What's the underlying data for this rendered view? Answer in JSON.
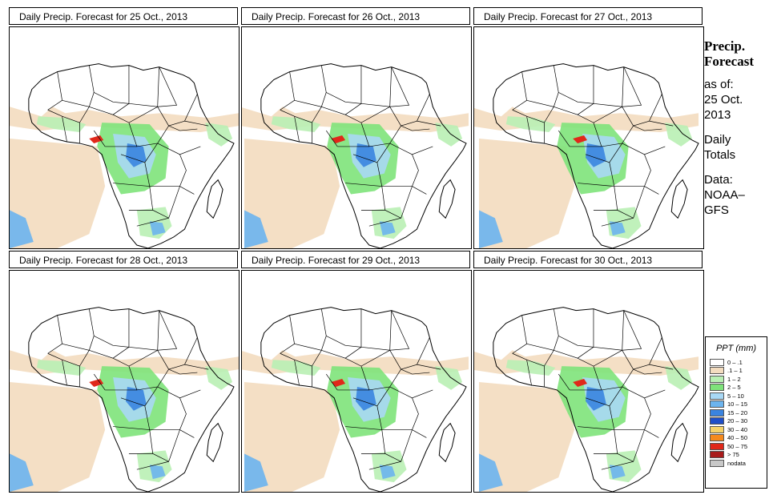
{
  "panels": [
    {
      "title": "Daily Precip. Forecast for  25 Oct., 2013"
    },
    {
      "title": "Daily Precip. Forecast for  26 Oct., 2013"
    },
    {
      "title": "Daily Precip. Forecast for  27 Oct., 2013"
    },
    {
      "title": "Daily Precip. Forecast for  28 Oct., 2013"
    },
    {
      "title": "Daily Precip. Forecast for  29 Oct., 2013"
    },
    {
      "title": "Daily Precip. Forecast for  30 Oct., 2013"
    }
  ],
  "sidebar": {
    "heading_1": "Precip.",
    "heading_2": "Forecast",
    "asof_1": "as of:",
    "asof_2": "25 Oct.",
    "asof_3": "2013",
    "totals_1": "Daily",
    "totals_2": "Totals",
    "data_1": "Data:",
    "data_2": "NOAA–",
    "data_3": "GFS"
  },
  "legend": {
    "title": "PPT (mm)",
    "items": [
      {
        "label": "0 – .1",
        "color": "#ffffff"
      },
      {
        "label": ".1 – 1",
        "color": "#f3dcbf"
      },
      {
        "label": "1 – 2",
        "color": "#b9f0b4"
      },
      {
        "label": "2 – 5",
        "color": "#7ee37a"
      },
      {
        "label": "5 – 10",
        "color": "#a8d8f5"
      },
      {
        "label": "10 – 15",
        "color": "#6cb4ee"
      },
      {
        "label": "15 – 20",
        "color": "#3a84e0"
      },
      {
        "label": "20 – 30",
        "color": "#1f4fc8"
      },
      {
        "label": "30 – 40",
        "color": "#f5d36a"
      },
      {
        "label": "40 – 50",
        "color": "#f58a1e"
      },
      {
        "label": "50 – 75",
        "color": "#e0281a"
      },
      {
        "label": "> 75",
        "color": "#a81a1a"
      },
      {
        "label": "nodata",
        "color": "#c8c8c8"
      }
    ]
  }
}
